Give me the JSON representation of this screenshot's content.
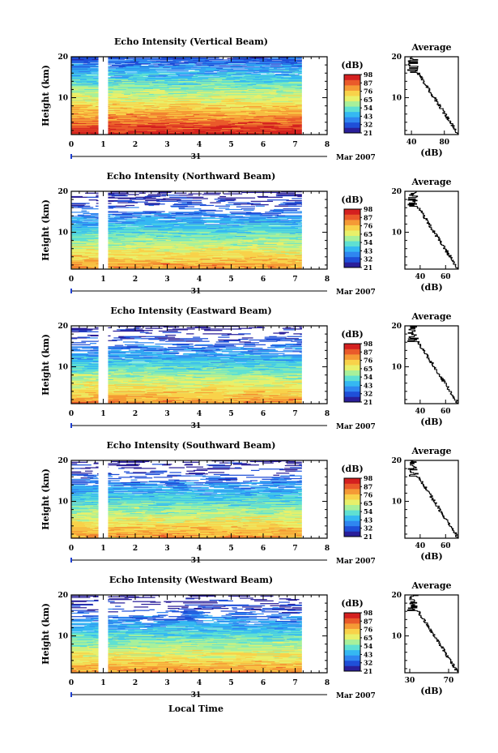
{
  "chart_data": {
    "type": "heatmap",
    "panels": [
      {
        "title": "Echo Intensity (Vertical Beam)",
        "average_title": "Average",
        "average_ticks": [
          40,
          80
        ],
        "average_xrange": [
          32,
          97
        ]
      },
      {
        "title": "Echo Intensity (Northward Beam)",
        "average_title": "Average",
        "average_ticks": [
          40,
          60
        ],
        "average_xrange": [
          28,
          70
        ]
      },
      {
        "title": "Echo Intensity (Eastward Beam)",
        "average_title": "Average",
        "average_ticks": [
          40,
          60
        ],
        "average_xrange": [
          28,
          70
        ]
      },
      {
        "title": "Echo Intensity (Southward Beam)",
        "average_title": "Average",
        "average_ticks": [
          40,
          60
        ],
        "average_xrange": [
          28,
          70
        ]
      },
      {
        "title": "Echo Intensity (Westward Beam)",
        "average_title": "Average",
        "average_ticks": [
          30,
          70
        ],
        "average_xrange": [
          25,
          80
        ]
      }
    ],
    "ylabel": "Height (km)",
    "yticks": [
      10,
      20
    ],
    "ylim": [
      1,
      20
    ],
    "xlim": [
      0,
      8
    ],
    "xticks": [
      0,
      1,
      2,
      3,
      4,
      5,
      6,
      7,
      8
    ],
    "data_time_range": [
      0,
      7.2
    ],
    "data_gap": [
      0.85,
      1.15
    ],
    "date_label": "31",
    "month_year_label": "Mar 2007",
    "xlabel": "Local Time",
    "colorbar": {
      "label": "(dB)",
      "ticks": [
        98,
        87,
        76,
        65,
        54,
        43,
        32,
        21
      ],
      "range": [
        21,
        98
      ],
      "colors": [
        "#2a1f9a",
        "#1f4fd8",
        "#2f86f0",
        "#35b8f2",
        "#5fe0d2",
        "#a8f09a",
        "#e8f06a",
        "#f8d24a",
        "#f59a35",
        "#ea5a2a",
        "#d4201f"
      ]
    },
    "average_xlabel": "(dB)",
    "average_yticks": [
      10,
      20
    ]
  }
}
